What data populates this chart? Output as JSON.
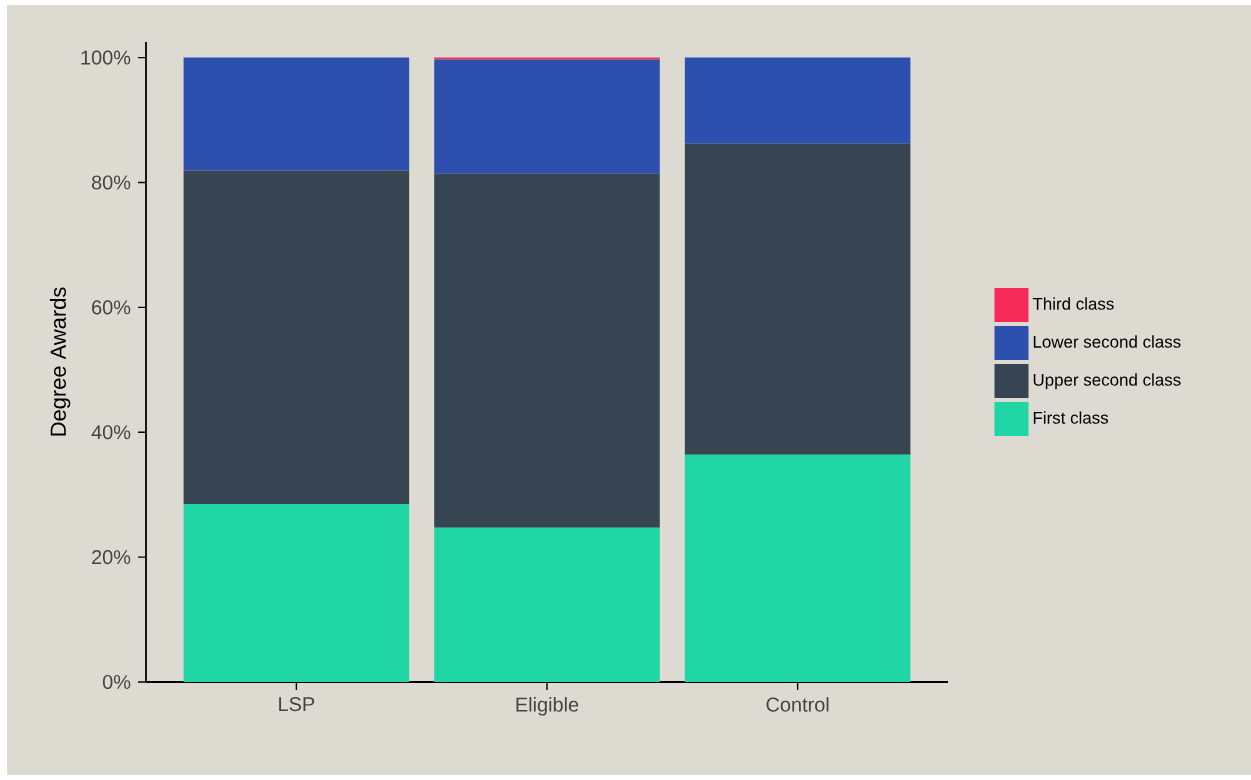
{
  "chart_data": {
    "type": "bar",
    "stacked": true,
    "ylabel": "Degree Awards",
    "categories": [
      "LSP",
      "Eligible",
      "Control"
    ],
    "series": [
      {
        "name": "First class",
        "color": "#1fd6a4",
        "values": [
          28.5,
          24.7,
          36.4
        ]
      },
      {
        "name": "Upper second class",
        "color": "#374451",
        "values": [
          53.4,
          56.7,
          49.8
        ]
      },
      {
        "name": "Lower second class",
        "color": "#2d4fae",
        "values": [
          18.1,
          18.3,
          13.8
        ]
      },
      {
        "name": "Third class",
        "color": "#f72b5a",
        "values": [
          0,
          0.3,
          0
        ]
      }
    ],
    "ylim": [
      0,
      102.5
    ],
    "yticks": [
      {
        "value": 0,
        "label": "0%"
      },
      {
        "value": 20,
        "label": "20%"
      },
      {
        "value": 40,
        "label": "40%"
      },
      {
        "value": 60,
        "label": "60%"
      },
      {
        "value": 80,
        "label": "80%"
      },
      {
        "value": 100,
        "label": "100%"
      }
    ],
    "legend": "right"
  }
}
